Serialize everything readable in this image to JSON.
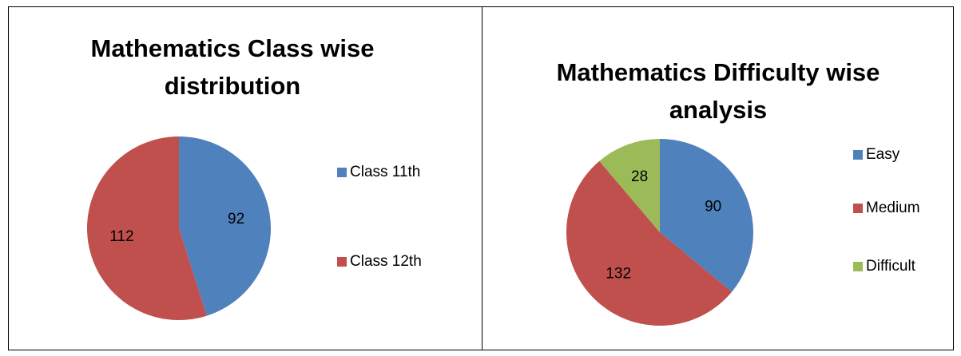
{
  "chart_data": [
    {
      "type": "pie",
      "title": "Mathematics Class wise distribution",
      "categories": [
        "Class 11th",
        "Class 12th"
      ],
      "values": [
        92,
        112
      ],
      "colors": [
        "#4f81bd",
        "#c0504d"
      ],
      "legend": "right"
    },
    {
      "type": "pie",
      "title": "Mathematics Difficulty wise analysis",
      "categories": [
        "Easy",
        "Medium",
        "Difficult"
      ],
      "values": [
        90,
        132,
        28
      ],
      "colors": [
        "#4f81bd",
        "#c0504d",
        "#9bbb59"
      ],
      "legend": "right"
    }
  ]
}
